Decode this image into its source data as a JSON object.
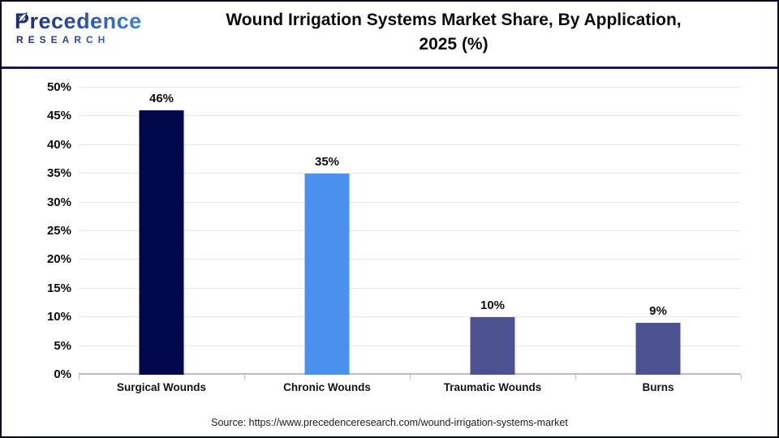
{
  "header": {
    "logo_main": "Precedence",
    "logo_sub": "RESEARCH",
    "title_line1": "Wound Irrigation Systems Market Share, By Application,",
    "title_line2": "2025 (%)"
  },
  "chart_data": {
    "type": "bar",
    "categories": [
      "Surgical Wounds",
      "Chronic Wounds",
      "Traumatic Wounds",
      "Burns"
    ],
    "values": [
      46,
      35,
      10,
      9
    ],
    "value_labels": [
      "46%",
      "35%",
      "10%",
      "9%"
    ],
    "bar_colors": [
      "#01094c",
      "#4a90ec",
      "#4c5190",
      "#4c5190"
    ],
    "title": "Wound Irrigation Systems Market Share, By Application, 2025 (%)",
    "xlabel": "",
    "ylabel": "",
    "ylim": [
      0,
      50
    ],
    "ytick_step": 5,
    "ytick_suffix": "%",
    "grid": true,
    "legend": "none",
    "gridline_color": "#e8e8e8",
    "axis_color": "#bdbdbd"
  },
  "footer": {
    "source": "Source: https://www.precedenceresearch.com/wound-irrigation-systems-market"
  }
}
